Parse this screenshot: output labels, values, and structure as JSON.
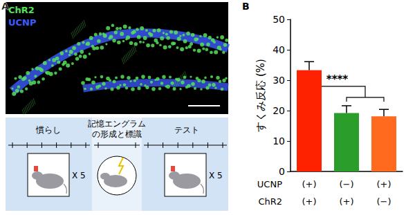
{
  "panel_a": {
    "label": "A",
    "image": {
      "channels": [
        {
          "name": "ChR2",
          "color": "#55e05a"
        },
        {
          "name": "UCNP",
          "color": "#3d5cff"
        }
      ]
    },
    "schedule": {
      "phases": [
        {
          "lines": [
            "慣らし"
          ],
          "repeat": "X 5"
        },
        {
          "lines": [
            "記憶エングラム",
            "の形成と標識"
          ]
        },
        {
          "lines": [
            "テスト"
          ],
          "repeat": "X 5"
        }
      ]
    }
  },
  "panel_b": {
    "label": "B"
  },
  "chart_data": {
    "type": "bar",
    "y_label": "すくみ反応 (%)",
    "row_labels": [
      "UCNP",
      "ChR2"
    ],
    "categories": [
      [
        "(+)",
        "(+)"
      ],
      [
        "(−)",
        "(+)"
      ],
      [
        "(+)",
        "(−)"
      ]
    ],
    "values": [
      33.3,
      19.2,
      18.1
    ],
    "errors": [
      2.8,
      2.4,
      2.3
    ],
    "colors": [
      "#ff2200",
      "#2a9d2a",
      "#ff6a1f"
    ],
    "ylim": [
      0,
      50
    ],
    "yticks": [
      0,
      10,
      20,
      30,
      40,
      50
    ],
    "grid": false,
    "annotations": [
      {
        "text": "****",
        "from": 0,
        "to": [
          1,
          2
        ]
      }
    ]
  }
}
